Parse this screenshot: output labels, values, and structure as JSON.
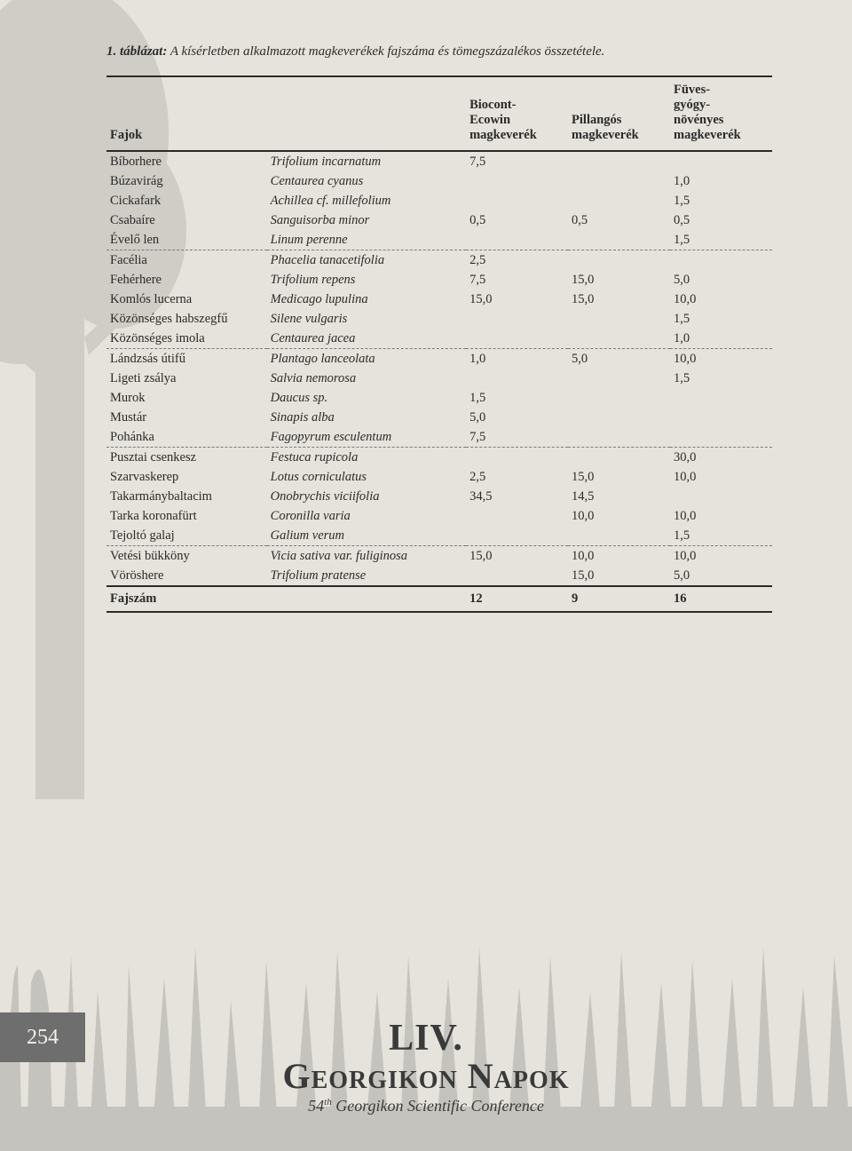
{
  "caption_bold": "1. táblázat:",
  "caption_rest": " A kísérletben alkalmazott magkeverékek fajszáma és tömegszázalékos összetétele.",
  "columns": {
    "c0": "Fajok",
    "c1": "",
    "c2_l1": "Biocont-",
    "c2_l2": "Ecowin",
    "c2_l3": "magkeverék",
    "c3_l1": "Pillangós",
    "c3_l2": "magkeverék",
    "c4_l1": "Füves-",
    "c4_l2": "gyógy-",
    "c4_l3": "növényes",
    "c4_l4": "magkeverék"
  },
  "rows": [
    {
      "hun": "Bíborhere",
      "lat": "Trifolium incarnatum",
      "v1": "7,5",
      "v2": "",
      "v3": ""
    },
    {
      "hun": "Búzavirág",
      "lat": "Centaurea cyanus",
      "v1": "",
      "v2": "",
      "v3": "1,0"
    },
    {
      "hun": "Cickafark",
      "lat": "Achillea cf. millefolium",
      "v1": "",
      "v2": "",
      "v3": "1,5"
    },
    {
      "hun": "Csabaíre",
      "lat": "Sanguisorba minor",
      "v1": "0,5",
      "v2": "0,5",
      "v3": "0,5"
    },
    {
      "hun": "Évelő len",
      "lat": "Linum perenne",
      "v1": "",
      "v2": "",
      "v3": "1,5",
      "dashed": true
    },
    {
      "hun": "Facélia",
      "lat": "Phacelia tanacetifolia",
      "v1": "2,5",
      "v2": "",
      "v3": ""
    },
    {
      "hun": "Fehérhere",
      "lat": "Trifolium repens",
      "v1": "7,5",
      "v2": "15,0",
      "v3": "5,0"
    },
    {
      "hun": "Komlós lucerna",
      "lat": "Medicago lupulina",
      "v1": "15,0",
      "v2": "15,0",
      "v3": "10,0"
    },
    {
      "hun": "Közönséges habszegfű",
      "lat": "Silene vulgaris",
      "v1": "",
      "v2": "",
      "v3": "1,5"
    },
    {
      "hun": "Közönséges imola",
      "lat": "Centaurea jacea",
      "v1": "",
      "v2": "",
      "v3": "1,0",
      "dashed": true
    },
    {
      "hun": "Lándzsás útifű",
      "lat": "Plantago lanceolata",
      "v1": "1,0",
      "v2": "5,0",
      "v3": "10,0"
    },
    {
      "hun": "Ligeti zsálya",
      "lat": "Salvia nemorosa",
      "v1": "",
      "v2": "",
      "v3": "1,5"
    },
    {
      "hun": "Murok",
      "lat": "Daucus sp.",
      "v1": "1,5",
      "v2": "",
      "v3": ""
    },
    {
      "hun": "Mustár",
      "lat": "Sinapis alba",
      "v1": "5,0",
      "v2": "",
      "v3": ""
    },
    {
      "hun": "Pohánka",
      "lat": "Fagopyrum esculentum",
      "v1": "7,5",
      "v2": "",
      "v3": "",
      "dashed": true
    },
    {
      "hun": "Pusztai csenkesz",
      "lat": "Festuca rupicola",
      "v1": "",
      "v2": "",
      "v3": "30,0"
    },
    {
      "hun": "Szarvaskerep",
      "lat": "Lotus corniculatus",
      "v1": "2,5",
      "v2": "15,0",
      "v3": "10,0"
    },
    {
      "hun": "Takarmánybaltacim",
      "lat": "Onobrychis viciifolia",
      "v1": "34,5",
      "v2": "14,5",
      "v3": ""
    },
    {
      "hun": "Tarka koronafürt",
      "lat": "Coronilla varia",
      "v1": "",
      "v2": "10,0",
      "v3": "10,0"
    },
    {
      "hun": "Tejoltó galaj",
      "lat": "Galium verum",
      "v1": "",
      "v2": "",
      "v3": "1,5",
      "dashed": true
    },
    {
      "hun": "Vetési bükköny",
      "lat": "Vicia sativa var. fuliginosa",
      "v1": "15,0",
      "v2": "10,0",
      "v3": "10,0"
    },
    {
      "hun": "Vöröshere",
      "lat": "Trifolium pratense",
      "v1": "",
      "v2": "15,0",
      "v3": "5,0"
    }
  ],
  "total": {
    "label": "Fajszám",
    "v1": "12",
    "v2": "9",
    "v3": "16"
  },
  "page_number": "254",
  "footer_line1a": "LIV.",
  "footer_line2": "Georgikon Napok",
  "footer_sub_pre": "54",
  "footer_sub_sup": "th",
  "footer_sub_post": " Georgikon Scientific Conference"
}
